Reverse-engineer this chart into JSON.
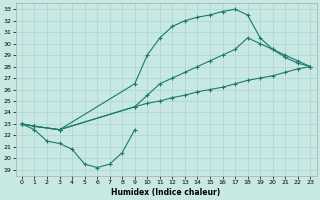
{
  "xlabel": "Humidex (Indice chaleur)",
  "xlim": [
    -0.5,
    23.5
  ],
  "ylim": [
    18.5,
    33.5
  ],
  "yticks": [
    19,
    20,
    21,
    22,
    23,
    24,
    25,
    26,
    27,
    28,
    29,
    30,
    31,
    32,
    33
  ],
  "xticks": [
    0,
    1,
    2,
    3,
    4,
    5,
    6,
    7,
    8,
    9,
    10,
    11,
    12,
    13,
    14,
    15,
    16,
    17,
    18,
    19,
    20,
    21,
    22,
    23
  ],
  "bg_color": "#c8e8e4",
  "grid_color": "#b0d8d4",
  "line_color": "#1a7a6e",
  "line1": {
    "x": [
      0,
      1,
      3,
      9,
      10,
      11,
      12,
      13,
      14,
      15,
      16,
      17,
      18,
      19,
      20,
      21,
      22,
      23
    ],
    "y": [
      23.0,
      22.8,
      22.5,
      24.5,
      24.8,
      25.0,
      25.3,
      25.5,
      25.8,
      26.0,
      26.2,
      26.5,
      26.8,
      27.0,
      27.2,
      27.5,
      27.8,
      28.0
    ]
  },
  "line2": {
    "x": [
      0,
      1,
      3,
      9,
      10,
      11,
      12,
      13,
      14,
      15,
      16,
      17,
      18,
      19,
      20,
      21,
      22,
      23
    ],
    "y": [
      23.0,
      22.8,
      22.5,
      26.5,
      29.0,
      30.5,
      31.5,
      32.0,
      32.3,
      32.5,
      32.8,
      33.0,
      32.5,
      30.5,
      29.5,
      28.8,
      28.3,
      28.0
    ]
  },
  "line3": {
    "x": [
      0,
      1,
      3,
      9,
      10,
      11,
      12,
      13,
      14,
      15,
      16,
      17,
      18,
      19,
      20,
      21,
      22,
      23
    ],
    "y": [
      23.0,
      22.8,
      22.5,
      24.5,
      25.5,
      26.5,
      27.0,
      27.5,
      28.0,
      28.5,
      29.0,
      29.5,
      30.5,
      30.0,
      29.5,
      29.0,
      28.5,
      28.0
    ]
  },
  "line4": {
    "x": [
      0,
      1,
      2,
      3,
      4,
      5,
      6,
      7,
      8,
      9
    ],
    "y": [
      23.0,
      22.5,
      21.5,
      21.3,
      20.8,
      19.5,
      19.2,
      19.5,
      20.5,
      22.5
    ]
  }
}
